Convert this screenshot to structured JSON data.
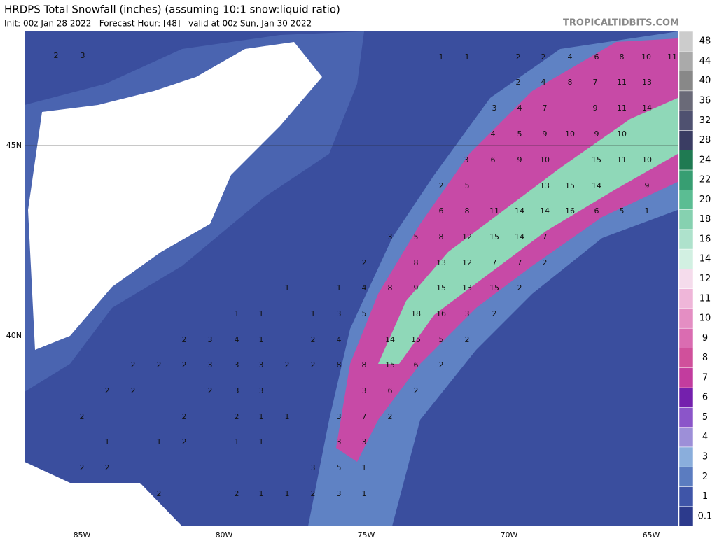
{
  "header": {
    "title": "HRDPS Total Snowfall (inches) (assuming 10:1 snow:liquid ratio)",
    "subtitle": "Init: 00z Jan 28 2022   Forecast Hour: [48]   valid at 00z Sun, Jan 30 2022",
    "credit": "TROPICALTIDBITS.COM"
  },
  "axes": {
    "lon_labels": [
      "85W",
      "80W",
      "75W",
      "70W",
      "65W"
    ],
    "lat_labels": [
      "45N",
      "40N"
    ]
  },
  "colorbar": {
    "levels": [
      0.1,
      1,
      2,
      3,
      4,
      5,
      6,
      7,
      8,
      9,
      10,
      11,
      12,
      14,
      16,
      18,
      20,
      22,
      24,
      28,
      32,
      36,
      40,
      44,
      48
    ],
    "colors": [
      "#2c3a8c",
      "#3f55a8",
      "#5b7cc0",
      "#8aaedc",
      "#9d8fd8",
      "#8b55c9",
      "#7420ad",
      "#c23c9e",
      "#d0509b",
      "#da6cb1",
      "#e48ec3",
      "#efb6d9",
      "#f5dcec",
      "#d2f0e2",
      "#aee2cc",
      "#86d1b0",
      "#5bbd93",
      "#379e72",
      "#1f7a52",
      "#3a3d63",
      "#4f5170",
      "#6a6a78",
      "#888888",
      "#aaaaaa",
      "#cccccc"
    ]
  },
  "map_labels": [
    2,
    3,
    1,
    1,
    2,
    2,
    4,
    6,
    8,
    10,
    11,
    2,
    4,
    8,
    7,
    11,
    13,
    3,
    4,
    7,
    9,
    11,
    14,
    4,
    5,
    9,
    10,
    9,
    10,
    3,
    6,
    9,
    10,
    15,
    11,
    10,
    2,
    5,
    13,
    15,
    14,
    9,
    6,
    8,
    11,
    14,
    14,
    16,
    6,
    5,
    1,
    3,
    5,
    8,
    12,
    15,
    14,
    7,
    2,
    8,
    13,
    12,
    7,
    7,
    2,
    1,
    1,
    4,
    8,
    9,
    15,
    13,
    15,
    2,
    1,
    1,
    1,
    3,
    5,
    18,
    16,
    3,
    2,
    2,
    3,
    4,
    1,
    2,
    4,
    14,
    15,
    5,
    2,
    2,
    2,
    2,
    3,
    3,
    3,
    2,
    2,
    8,
    8,
    15,
    6,
    2,
    2,
    2,
    2,
    3,
    3,
    3,
    6,
    2,
    2,
    2,
    2,
    1,
    1,
    3,
    7,
    2,
    1,
    1,
    2,
    1,
    1,
    3,
    3,
    2,
    2,
    3,
    5,
    1,
    2,
    2,
    1,
    1,
    2,
    3,
    1
  ]
}
